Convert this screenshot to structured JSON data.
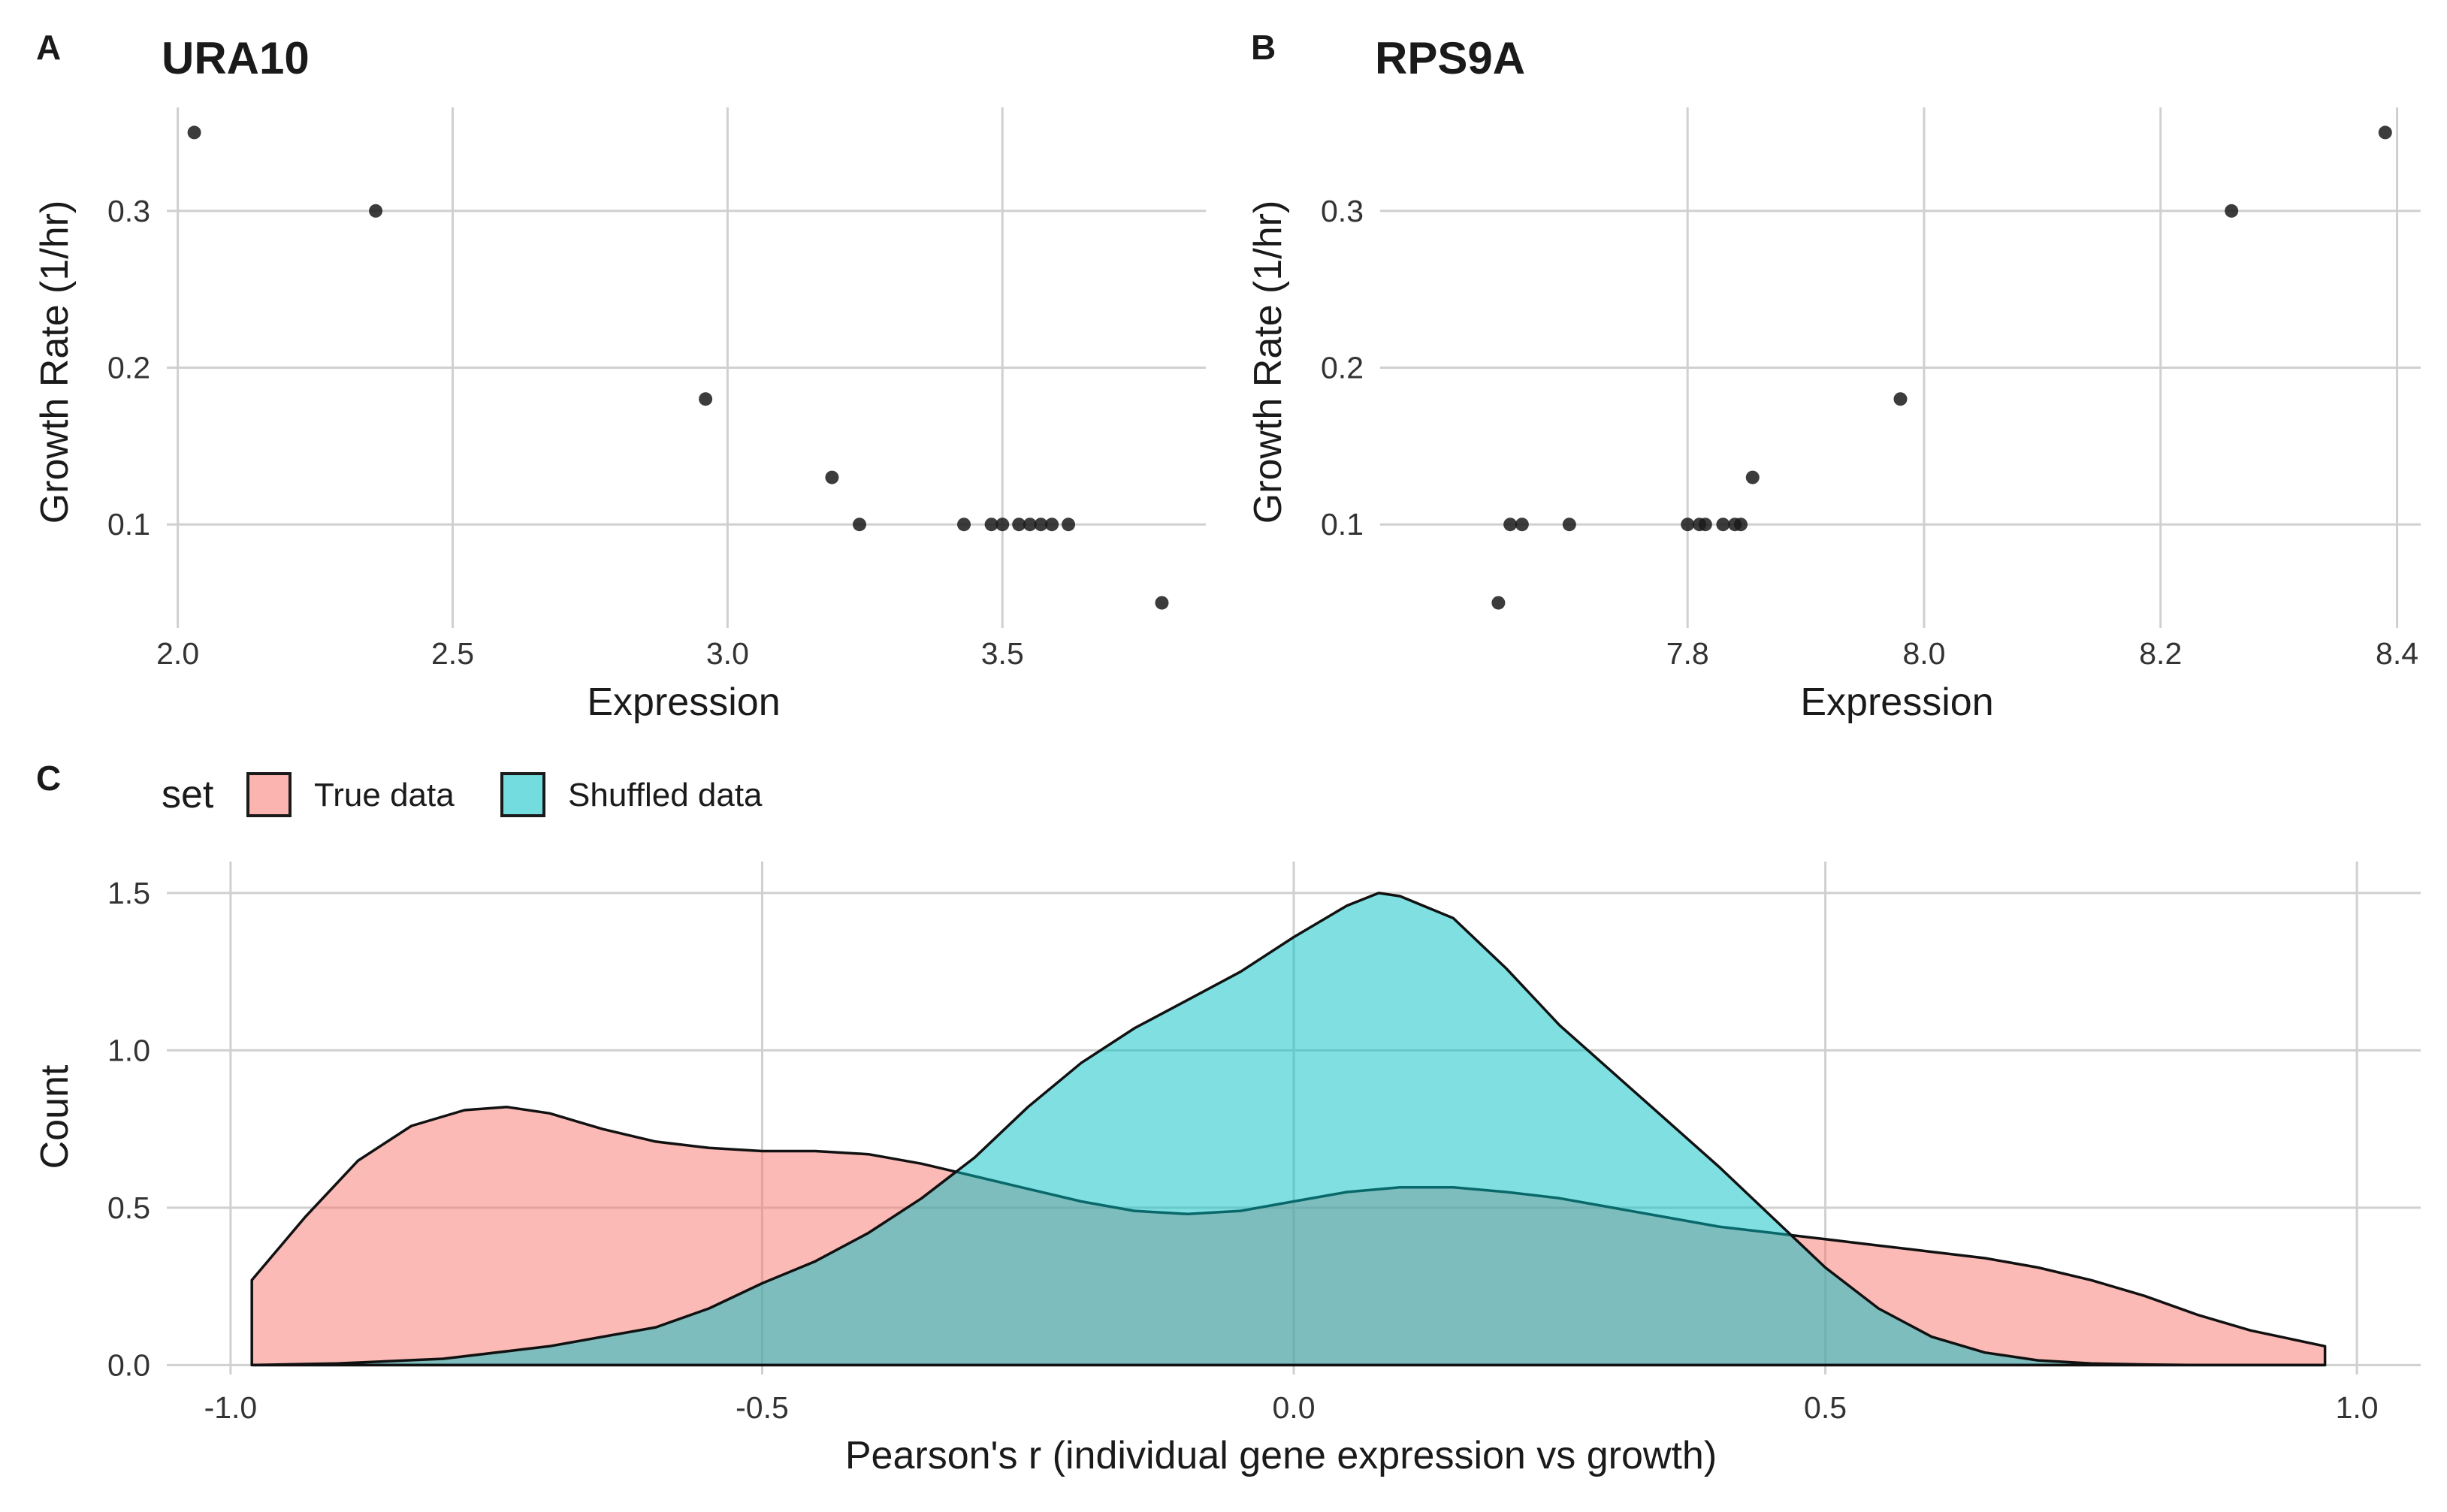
{
  "panels": {
    "a": {
      "tag": "A",
      "title": "URA10",
      "xlabel": "Expression",
      "ylabel": "Growth Rate (1/hr)"
    },
    "b": {
      "tag": "B",
      "title": "RPS9A",
      "xlabel": "Expression",
      "ylabel": "Growth Rate (1/hr)"
    },
    "c": {
      "tag": "C",
      "xlabel": "Pearson's r (individual gene expression vs growth)",
      "ylabel": "Count",
      "legend_title": "set",
      "legend_true": "True data",
      "legend_shuffled": "Shuffled data"
    }
  },
  "chart_data": [
    {
      "type": "scatter",
      "title": "URA10",
      "xlabel": "Expression",
      "ylabel": "Growth Rate (1/hr)",
      "xlim": [
        1.98,
        3.87
      ],
      "ylim": [
        0.034,
        0.366
      ],
      "xticks": [
        "2.0",
        "2.5",
        "3.0",
        "3.5"
      ],
      "yticks": [
        "0.1",
        "0.2",
        "0.3"
      ],
      "xtick_values": [
        2.0,
        2.5,
        3.0,
        3.5
      ],
      "ytick_values": [
        0.1,
        0.2,
        0.3
      ],
      "grid": true,
      "point_color": "#1a1a1a",
      "points": [
        {
          "x": 2.03,
          "y": 0.35
        },
        {
          "x": 2.36,
          "y": 0.3
        },
        {
          "x": 2.96,
          "y": 0.18
        },
        {
          "x": 3.19,
          "y": 0.13
        },
        {
          "x": 3.24,
          "y": 0.1
        },
        {
          "x": 3.43,
          "y": 0.1
        },
        {
          "x": 3.48,
          "y": 0.1
        },
        {
          "x": 3.5,
          "y": 0.1
        },
        {
          "x": 3.53,
          "y": 0.1
        },
        {
          "x": 3.55,
          "y": 0.1
        },
        {
          "x": 3.57,
          "y": 0.1
        },
        {
          "x": 3.59,
          "y": 0.1
        },
        {
          "x": 3.62,
          "y": 0.1
        },
        {
          "x": 3.79,
          "y": 0.05
        }
      ]
    },
    {
      "type": "scatter",
      "title": "RPS9A",
      "xlabel": "Expression",
      "ylabel": "Growth Rate (1/hr)",
      "xlim": [
        7.54,
        8.42
      ],
      "ylim": [
        0.034,
        0.366
      ],
      "xticks": [
        "7.8",
        "8.0",
        "8.2",
        "8.4"
      ],
      "yticks": [
        "0.1",
        "0.2",
        "0.3"
      ],
      "xtick_values": [
        7.8,
        8.0,
        8.2,
        8.4
      ],
      "ytick_values": [
        0.1,
        0.2,
        0.3
      ],
      "grid": true,
      "point_color": "#1a1a1a",
      "points": [
        {
          "x": 7.64,
          "y": 0.05
        },
        {
          "x": 7.65,
          "y": 0.1
        },
        {
          "x": 7.66,
          "y": 0.1
        },
        {
          "x": 7.7,
          "y": 0.1
        },
        {
          "x": 7.8,
          "y": 0.1
        },
        {
          "x": 7.81,
          "y": 0.1
        },
        {
          "x": 7.815,
          "y": 0.1
        },
        {
          "x": 7.83,
          "y": 0.1
        },
        {
          "x": 7.84,
          "y": 0.1
        },
        {
          "x": 7.845,
          "y": 0.1
        },
        {
          "x": 7.855,
          "y": 0.13
        },
        {
          "x": 7.98,
          "y": 0.18
        },
        {
          "x": 8.26,
          "y": 0.3
        },
        {
          "x": 8.39,
          "y": 0.35
        }
      ]
    },
    {
      "type": "area",
      "xlabel": "Pearson's r (individual gene expression vs growth)",
      "ylabel": "Count",
      "xlim": [
        -1.06,
        1.06
      ],
      "ylim": [
        -0.03,
        1.6
      ],
      "xticks": [
        "-1.0",
        "-0.5",
        "0.0",
        "0.5",
        "1.0"
      ],
      "yticks": [
        "0.0",
        "0.5",
        "1.0",
        "1.5"
      ],
      "xtick_values": [
        -1.0,
        -0.5,
        0.0,
        0.5,
        1.0
      ],
      "ytick_values": [
        0.0,
        0.5,
        1.0,
        1.5
      ],
      "grid": true,
      "legend": "top-left",
      "series": [
        {
          "name": "True data",
          "color": "#F8766D",
          "x": [
            -0.98,
            -0.93,
            -0.88,
            -0.83,
            -0.78,
            -0.74,
            -0.7,
            -0.65,
            -0.6,
            -0.55,
            -0.5,
            -0.45,
            -0.4,
            -0.35,
            -0.3,
            -0.25,
            -0.2,
            -0.15,
            -0.1,
            -0.05,
            0.0,
            0.05,
            0.1,
            0.15,
            0.2,
            0.25,
            0.3,
            0.35,
            0.4,
            0.45,
            0.5,
            0.55,
            0.6,
            0.65,
            0.7,
            0.75,
            0.8,
            0.85,
            0.9,
            0.97
          ],
          "y": [
            0.27,
            0.47,
            0.65,
            0.76,
            0.81,
            0.82,
            0.8,
            0.75,
            0.71,
            0.69,
            0.68,
            0.68,
            0.67,
            0.64,
            0.6,
            0.56,
            0.52,
            0.49,
            0.48,
            0.49,
            0.52,
            0.55,
            0.565,
            0.565,
            0.55,
            0.53,
            0.5,
            0.47,
            0.44,
            0.42,
            0.4,
            0.38,
            0.36,
            0.34,
            0.31,
            0.27,
            0.22,
            0.16,
            0.11,
            0.06
          ]
        },
        {
          "name": "Shuffled data",
          "color": "#00BFC4",
          "x": [
            -0.98,
            -0.9,
            -0.8,
            -0.7,
            -0.6,
            -0.55,
            -0.5,
            -0.45,
            -0.4,
            -0.35,
            -0.3,
            -0.25,
            -0.2,
            -0.15,
            -0.1,
            -0.05,
            0.0,
            0.05,
            0.08,
            0.1,
            0.15,
            0.2,
            0.25,
            0.3,
            0.35,
            0.4,
            0.45,
            0.5,
            0.55,
            0.6,
            0.65,
            0.7,
            0.75,
            0.8,
            0.85,
            0.9,
            0.97
          ],
          "y": [
            0.0,
            0.005,
            0.02,
            0.06,
            0.12,
            0.18,
            0.26,
            0.33,
            0.42,
            0.53,
            0.66,
            0.82,
            0.96,
            1.07,
            1.16,
            1.25,
            1.36,
            1.46,
            1.5,
            1.49,
            1.42,
            1.26,
            1.08,
            0.93,
            0.78,
            0.63,
            0.47,
            0.31,
            0.18,
            0.09,
            0.04,
            0.015,
            0.005,
            0.002,
            0.0,
            0.0,
            0.0
          ]
        }
      ]
    }
  ]
}
